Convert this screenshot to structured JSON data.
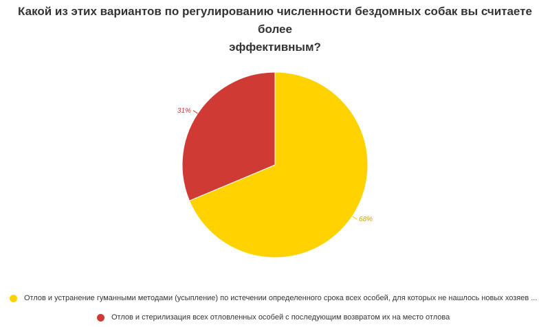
{
  "chart_data": {
    "type": "pie",
    "title": "Какой из этих вариантов по регулированию численности бездомных собак вы считаете более эффективным?",
    "title_lines": [
      "Какой из этих вариантов по регулированию численности бездомных собак вы считаете более",
      "эффективным?"
    ],
    "slices": [
      {
        "name": "Отлов и устранение гуманными методами (усыпление) по истечении определенного срока всех особей, для которых не нашлось новых хозяев ...",
        "value": 68,
        "label": "68%",
        "color": "#FFD200"
      },
      {
        "name": "Отлов и стерилизация всех отловленных особей с последующим возвратом их на место отлова",
        "value": 31,
        "label": "31%",
        "color": "#D03A34"
      }
    ],
    "start_angle": "12 o'clock",
    "direction": "clockwise",
    "legend_position": "bottom"
  }
}
